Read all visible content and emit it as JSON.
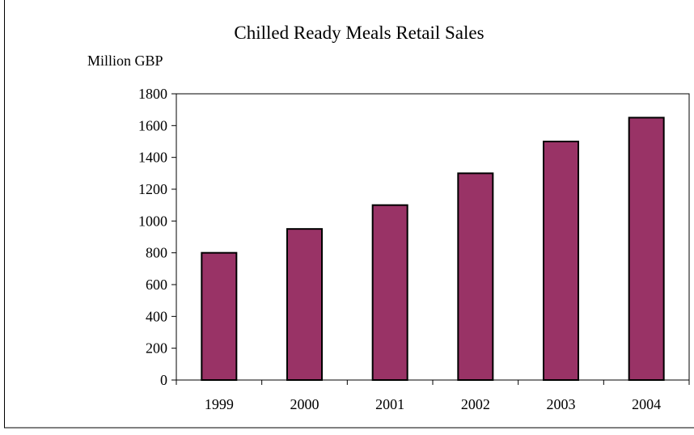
{
  "chart_data": {
    "type": "bar",
    "title": "Chilled Ready Meals Retail Sales",
    "ylabel": "Million GBP",
    "xlabel": "",
    "categories": [
      "1999",
      "2000",
      "2001",
      "2002",
      "2003",
      "2004"
    ],
    "values": [
      800,
      950,
      1100,
      1300,
      1500,
      1650
    ],
    "ylim": [
      0,
      1800
    ],
    "yticks": [
      0,
      200,
      400,
      600,
      800,
      1000,
      1200,
      1400,
      1600,
      1800
    ],
    "grid": false,
    "legend": "none",
    "bar_color": "#993366",
    "bar_edge_color": "#000000"
  }
}
